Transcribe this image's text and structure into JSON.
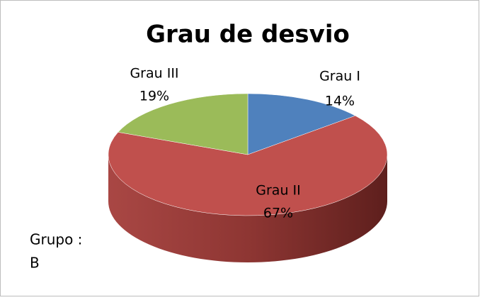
{
  "chart_data": {
    "type": "pie",
    "title": "Grau de desvio",
    "categories": [
      "Grau I",
      "Grau II",
      "Grau III"
    ],
    "values": [
      14,
      67,
      19
    ],
    "value_labels": [
      "14%",
      "67%",
      "19%"
    ],
    "colors": [
      "#4f81bd",
      "#c0504d",
      "#9bbb59"
    ],
    "annotation": [
      "Grupo :",
      "B"
    ]
  }
}
